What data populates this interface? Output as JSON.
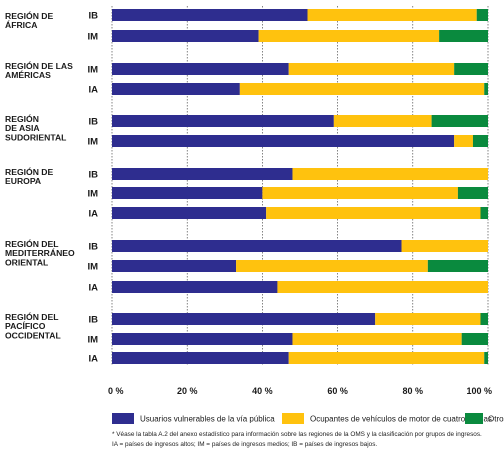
{
  "colors": {
    "vulnerable": "#2e2d8f",
    "four_wheel": "#ffc20e",
    "others": "#0a8a3e",
    "grid": "#333333"
  },
  "chart_data": {
    "type": "bar",
    "orientation": "horizontal",
    "stacked": true,
    "xlim": [
      0,
      100
    ],
    "ticks": [
      "0 %",
      "20 %",
      "40 %",
      "60 %",
      "80 %",
      "100 %"
    ],
    "groups": [
      {
        "region": [
          "REGIÓN DE",
          "ÁFRICA"
        ],
        "bars": [
          {
            "income": "IB",
            "values": [
              52,
              45,
              3
            ]
          },
          {
            "income": "IM",
            "values": [
              39,
              48,
              13
            ]
          }
        ]
      },
      {
        "region": [
          "REGIÓN DE LAS",
          "AMÉRICAS"
        ],
        "bars": [
          {
            "income": "IM",
            "values": [
              47,
              44,
              9
            ]
          },
          {
            "income": "IA",
            "values": [
              34,
              65,
              1
            ]
          }
        ]
      },
      {
        "region": [
          "REGIÓN",
          "DE ASIA",
          "SUDORIENTAL"
        ],
        "bars": [
          {
            "income": "IB",
            "values": [
              59,
              26,
              15
            ]
          },
          {
            "income": "IM",
            "values": [
              91,
              5,
              4
            ]
          }
        ]
      },
      {
        "region": [
          "REGIÓN DE",
          "EUROPA"
        ],
        "bars": [
          {
            "income": "IB",
            "values": [
              48,
              52,
              0
            ]
          },
          {
            "income": "IM",
            "values": [
              40,
              52,
              8
            ]
          },
          {
            "income": "IA",
            "values": [
              41,
              57,
              2
            ]
          }
        ]
      },
      {
        "region": [
          "REGIÓN DEL",
          "MEDITERRÁNEO",
          "ORIENTAL"
        ],
        "bars": [
          {
            "income": "IB",
            "values": [
              77,
              23,
              0
            ]
          },
          {
            "income": "IM",
            "values": [
              33,
              51,
              16
            ]
          },
          {
            "income": "IA",
            "values": [
              44,
              56,
              0
            ]
          }
        ]
      },
      {
        "region": [
          "REGIÓN DEL",
          "PACÍFICO",
          "OCCIDENTAL"
        ],
        "bars": [
          {
            "income": "IB",
            "values": [
              70,
              28,
              2
            ]
          },
          {
            "income": "IM",
            "values": [
              48,
              45,
              7
            ]
          },
          {
            "income": "IA",
            "values": [
              47,
              52,
              1
            ]
          }
        ]
      }
    ],
    "series": [
      {
        "name": "Usuarios vulnerables de la vía pública"
      },
      {
        "name": "Ocupantes de vehículos de motor de cuatro ruedas"
      },
      {
        "name": "Otros"
      }
    ],
    "legend_position": "bottom",
    "grid": true
  },
  "footnote": {
    "line1": "* Véase la tabla A.2 del anexo estadístico para información sobre las regiones de la OMS y la clasificación por grupos de ingresos.",
    "line2": "IA = países de ingresos altos; IM = países de ingresos medios; IB = países de ingresos bajos."
  }
}
